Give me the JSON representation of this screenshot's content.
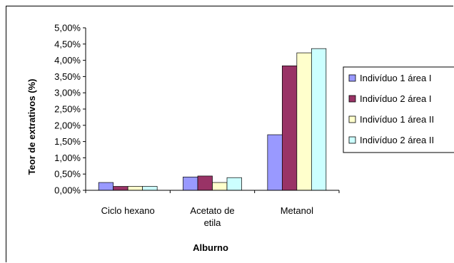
{
  "chart_data": {
    "type": "bar",
    "title": "",
    "xlabel": "Alburno",
    "ylabel": "Teor de extrativos (%)",
    "ylim": [
      0,
      5
    ],
    "yticks": [
      "0,00%",
      "0,50%",
      "1,00%",
      "1,50%",
      "2,00%",
      "2,50%",
      "3,00%",
      "3,50%",
      "4,00%",
      "4,50%",
      "5,00%"
    ],
    "categories": [
      "Ciclo hexano",
      "Acetato de etila",
      "Metanol"
    ],
    "series": [
      {
        "name": "Indivíduo 1 área I",
        "color": "#9999ff",
        "values": [
          0.24,
          0.41,
          1.71
        ]
      },
      {
        "name": "Indivíduo 2  área I",
        "color": "#993366",
        "values": [
          0.12,
          0.44,
          3.83
        ]
      },
      {
        "name": "Indivíduo 1 área II",
        "color": "#ffffcc",
        "values": [
          0.12,
          0.24,
          4.23
        ]
      },
      {
        "name": "Indivíduo 2 área II",
        "color": "#ccffff",
        "values": [
          0.12,
          0.39,
          4.36
        ]
      }
    ],
    "grid": false,
    "legend_position": "right"
  }
}
